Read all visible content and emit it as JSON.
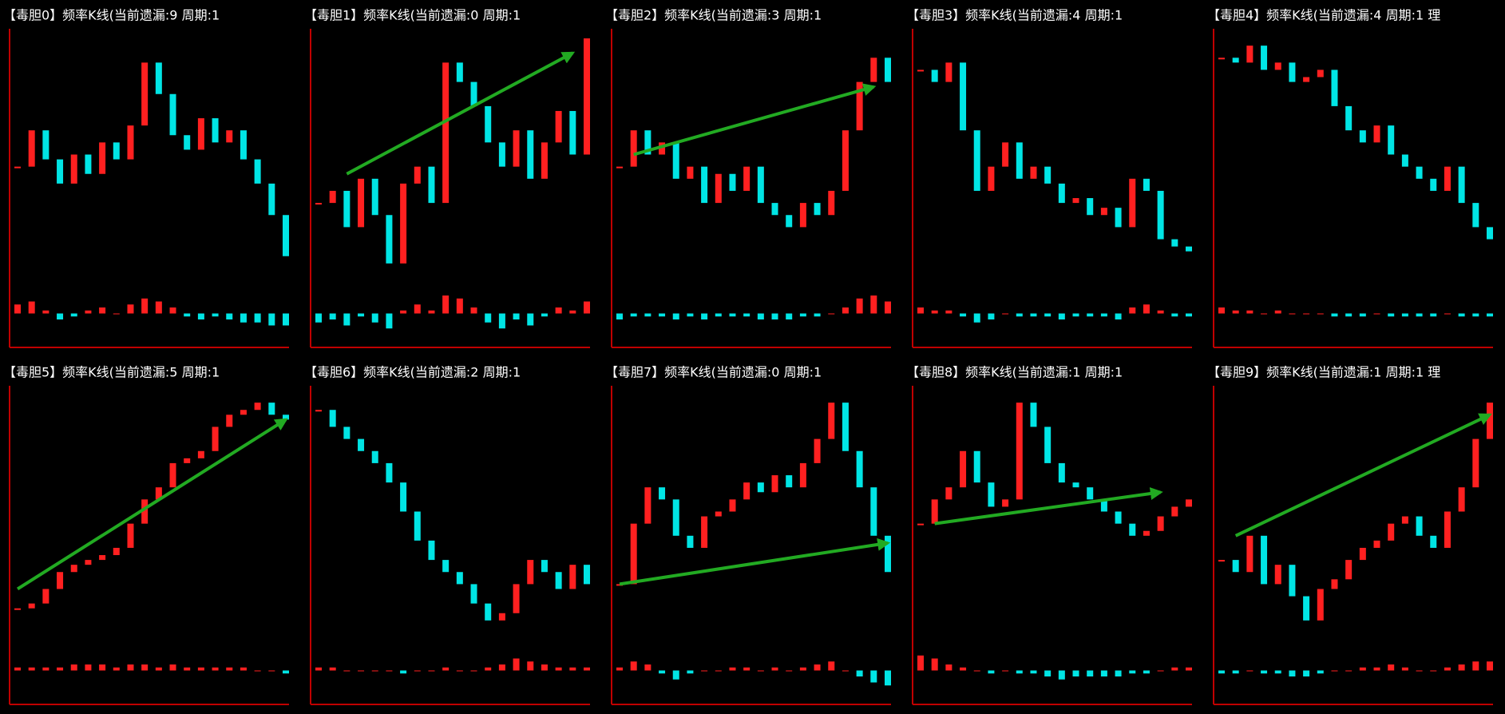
{
  "chart_data": [
    {
      "type": "kline",
      "title": "【毒胆0】频率K线(当前遗漏:9 周期:1",
      "values": [
        45,
        60,
        48,
        38,
        50,
        42,
        55,
        48,
        62,
        88,
        75,
        58,
        52,
        65,
        55,
        60,
        48,
        38,
        25,
        8
      ],
      "macd": [
        3,
        4,
        1,
        -2,
        -1,
        1,
        2,
        0,
        3,
        5,
        4,
        2,
        -1,
        -2,
        -1,
        -2,
        -3,
        -3,
        -4,
        -4
      ],
      "ylim": [
        0,
        100
      ],
      "macd_ylim": [
        -10,
        10
      ],
      "up_color": "#ff2020",
      "down_color": "#00e5e5"
    },
    {
      "type": "kline",
      "title": "【毒胆1】频率K线(当前遗漏:0 周期:1",
      "values": [
        30,
        35,
        20,
        40,
        25,
        5,
        38,
        45,
        30,
        88,
        80,
        70,
        55,
        45,
        60,
        40,
        55,
        68,
        50,
        98
      ],
      "macd": [
        -3,
        -2,
        -4,
        -1,
        -3,
        -5,
        1,
        3,
        1,
        6,
        5,
        2,
        -3,
        -5,
        -2,
        -4,
        -1,
        2,
        1,
        4
      ],
      "ylim": [
        0,
        100
      ],
      "macd_ylim": [
        -10,
        10
      ],
      "up_color": "#ff2020",
      "down_color": "#00e5e5",
      "trend": {
        "x": [
          2,
          18
        ],
        "y": [
          42,
          92
        ],
        "color": "#22aa22"
      }
    },
    {
      "type": "kline",
      "title": "【毒胆2】频率K线(当前遗漏:3 周期:1",
      "values": [
        45,
        60,
        50,
        55,
        40,
        45,
        30,
        42,
        35,
        45,
        30,
        25,
        20,
        30,
        25,
        35,
        60,
        80,
        90,
        80
      ],
      "macd": [
        -2,
        -1,
        -1,
        -1,
        -2,
        -1,
        -2,
        -1,
        -1,
        -1,
        -2,
        -2,
        -2,
        -1,
        -1,
        0,
        2,
        5,
        6,
        4
      ],
      "ylim": [
        0,
        100
      ],
      "macd_ylim": [
        -10,
        10
      ],
      "up_color": "#ff2020",
      "down_color": "#00e5e5",
      "trend": {
        "x": [
          1,
          18
        ],
        "y": [
          50,
          78
        ],
        "color": "#22aa22"
      }
    },
    {
      "type": "kline",
      "title": "【毒胆3】频率K线(当前遗漏:4 周期:1",
      "values": [
        85,
        80,
        88,
        60,
        35,
        45,
        55,
        40,
        45,
        38,
        30,
        32,
        25,
        28,
        20,
        40,
        35,
        15,
        12,
        10
      ],
      "macd": [
        2,
        1,
        1,
        -1,
        -3,
        -2,
        0,
        -1,
        -1,
        -1,
        -2,
        -1,
        -1,
        -1,
        -2,
        2,
        3,
        1,
        -1,
        -1
      ],
      "ylim": [
        0,
        100
      ],
      "macd_ylim": [
        -10,
        10
      ],
      "up_color": "#ff2020",
      "down_color": "#00e5e5"
    },
    {
      "type": "kline",
      "title": "【毒胆4】频率K线(当前遗漏:4 周期:1 理",
      "values": [
        90,
        88,
        95,
        85,
        88,
        80,
        82,
        85,
        70,
        60,
        55,
        62,
        50,
        45,
        40,
        35,
        45,
        30,
        20,
        15
      ],
      "macd": [
        2,
        1,
        1,
        0,
        1,
        0,
        0,
        0,
        -1,
        -1,
        -1,
        0,
        -1,
        -1,
        -1,
        -1,
        0,
        -1,
        -1,
        -1
      ],
      "ylim": [
        0,
        100
      ],
      "macd_ylim": [
        -10,
        10
      ],
      "up_color": "#ff2020",
      "down_color": "#00e5e5"
    },
    {
      "type": "kline",
      "title": "【毒胆5】频率K线(当前遗漏:5 周期:1",
      "values": [
        10,
        12,
        18,
        25,
        28,
        30,
        32,
        35,
        45,
        55,
        60,
        70,
        72,
        75,
        85,
        90,
        92,
        95,
        90,
        88
      ],
      "macd": [
        1,
        1,
        1,
        1,
        2,
        2,
        2,
        1,
        2,
        2,
        1,
        2,
        1,
        1,
        1,
        1,
        1,
        0,
        0,
        -1
      ],
      "ylim": [
        0,
        100
      ],
      "macd_ylim": [
        -10,
        10
      ],
      "up_color": "#ff2020",
      "down_color": "#00e5e5",
      "trend": {
        "x": [
          0,
          19
        ],
        "y": [
          18,
          88
        ],
        "color": "#22aa22"
      }
    },
    {
      "type": "kline",
      "title": "【毒胆6】频率K线(当前遗漏:2 周期:1",
      "values": [
        92,
        85,
        80,
        75,
        70,
        62,
        50,
        38,
        30,
        25,
        20,
        12,
        5,
        8,
        20,
        30,
        25,
        18,
        28,
        20
      ],
      "macd": [
        1,
        1,
        0,
        0,
        0,
        0,
        -1,
        0,
        0,
        1,
        0,
        0,
        1,
        2,
        4,
        3,
        2,
        1,
        1,
        1
      ],
      "ylim": [
        0,
        100
      ],
      "macd_ylim": [
        -10,
        10
      ],
      "up_color": "#ff2020",
      "down_color": "#00e5e5"
    },
    {
      "type": "kline",
      "title": "【毒胆7】频率K线(当前遗漏:0 周期:1",
      "values": [
        20,
        45,
        60,
        55,
        40,
        35,
        48,
        50,
        55,
        62,
        58,
        65,
        60,
        70,
        80,
        95,
        75,
        60,
        40,
        25
      ],
      "macd": [
        1,
        3,
        2,
        -1,
        -3,
        -1,
        0,
        0,
        1,
        1,
        0,
        1,
        0,
        1,
        2,
        3,
        0,
        -2,
        -4,
        -5
      ],
      "ylim": [
        0,
        100
      ],
      "macd_ylim": [
        -10,
        10
      ],
      "up_color": "#ff2020",
      "down_color": "#00e5e5",
      "trend": {
        "x": [
          0,
          19
        ],
        "y": [
          20,
          37
        ],
        "color": "#22aa22"
      }
    },
    {
      "type": "kline",
      "title": "【毒胆8】频率K线(当前遗漏:1 周期:1",
      "values": [
        45,
        55,
        60,
        75,
        62,
        52,
        55,
        95,
        85,
        70,
        62,
        60,
        55,
        50,
        45,
        40,
        42,
        48,
        52,
        55
      ],
      "macd": [
        5,
        4,
        2,
        1,
        0,
        -1,
        0,
        -1,
        -1,
        -2,
        -3,
        -2,
        -2,
        -2,
        -2,
        -1,
        -1,
        0,
        1,
        1
      ],
      "ylim": [
        0,
        100
      ],
      "macd_ylim": [
        -10,
        10
      ],
      "up_color": "#ff2020",
      "down_color": "#00e5e5",
      "trend": {
        "x": [
          1,
          17
        ],
        "y": [
          45,
          58
        ],
        "color": "#22aa22"
      }
    },
    {
      "type": "kline",
      "title": "【毒胆9】频率K线(当前遗漏:1 周期:1 理",
      "values": [
        30,
        25,
        40,
        20,
        28,
        15,
        5,
        18,
        22,
        30,
        35,
        38,
        45,
        48,
        40,
        35,
        50,
        60,
        80,
        95
      ],
      "macd": [
        -1,
        -1,
        0,
        -1,
        -1,
        -2,
        -2,
        -1,
        0,
        0,
        1,
        1,
        2,
        1,
        0,
        0,
        1,
        2,
        3,
        3
      ],
      "ylim": [
        0,
        100
      ],
      "macd_ylim": [
        -10,
        10
      ],
      "up_color": "#ff2020",
      "down_color": "#00e5e5",
      "trend": {
        "x": [
          1,
          19
        ],
        "y": [
          40,
          90
        ],
        "color": "#22aa22"
      }
    }
  ]
}
